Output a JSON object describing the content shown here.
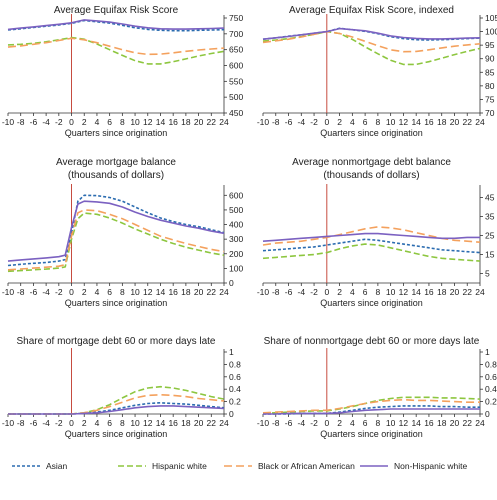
{
  "colors": {
    "asian": "#2b6cb0",
    "hispanic_white": "#8dc63f",
    "black": "#f4a15d",
    "non_hispanic_white": "#7b61c1",
    "origination_line": "#c0392b",
    "axis": "#333333"
  },
  "legend": {
    "items": [
      {
        "key": "asian",
        "label": "Asian",
        "dash": "3,2"
      },
      {
        "key": "hispanic_white",
        "label": "Hispanic white",
        "dash": "6,3"
      },
      {
        "key": "black",
        "label": "Black or African American",
        "dash": "8,4"
      },
      {
        "key": "non_hispanic_white",
        "label": "Non-Hispanic white",
        "dash": ""
      }
    ]
  },
  "chart_data": [
    {
      "type": "line",
      "title": "Average Equifax Risk Score",
      "xlabel": "Quarters since origination",
      "xlim": [
        -10,
        24
      ],
      "ylim": [
        450,
        750
      ],
      "xticks": [
        -10,
        -8,
        -6,
        -4,
        -2,
        0,
        2,
        4,
        6,
        8,
        10,
        12,
        14,
        16,
        18,
        20,
        22,
        24
      ],
      "yticks": [
        450,
        500,
        550,
        600,
        650,
        700,
        750
      ],
      "x": [
        -10,
        -8,
        -6,
        -4,
        -2,
        0,
        2,
        4,
        6,
        8,
        10,
        12,
        14,
        16,
        18,
        20,
        22,
        24
      ],
      "series": [
        {
          "key": "asian",
          "values": [
            712,
            716,
            720,
            724,
            728,
            733,
            742,
            738,
            734,
            727,
            719,
            714,
            711,
            710,
            710,
            711,
            712,
            713
          ]
        },
        {
          "key": "hispanic_white",
          "values": [
            665,
            667,
            670,
            675,
            681,
            688,
            683,
            668,
            650,
            632,
            615,
            605,
            605,
            612,
            621,
            630,
            638,
            645
          ]
        },
        {
          "key": "black",
          "values": [
            658,
            662,
            667,
            672,
            679,
            686,
            681,
            672,
            661,
            650,
            640,
            635,
            636,
            640,
            645,
            649,
            652,
            655
          ]
        },
        {
          "key": "non_hispanic_white",
          "values": [
            714,
            718,
            722,
            726,
            730,
            735,
            744,
            741,
            737,
            731,
            724,
            719,
            716,
            715,
            715,
            716,
            717,
            718
          ]
        }
      ]
    },
    {
      "type": "line",
      "title": "Average Equifax Risk Score, indexed",
      "xlabel": "Quarters since origination",
      "xlim": [
        -10,
        24
      ],
      "ylim": [
        70,
        105
      ],
      "xticks": [
        -10,
        -8,
        -6,
        -4,
        -2,
        0,
        2,
        4,
        6,
        8,
        10,
        12,
        14,
        16,
        18,
        20,
        22,
        24
      ],
      "yticks": [
        70,
        75,
        80,
        85,
        90,
        95,
        100,
        105
      ],
      "x": [
        -10,
        -8,
        -6,
        -4,
        -2,
        0,
        2,
        4,
        6,
        8,
        10,
        12,
        14,
        16,
        18,
        20,
        22,
        24
      ],
      "series": [
        {
          "key": "asian",
          "values": [
            97.2,
            97.7,
            98.3,
            98.8,
            99.4,
            100,
            101.2,
            100.7,
            100.1,
            99.2,
            98.1,
            97.4,
            97.0,
            96.9,
            97.0,
            97.2,
            97.4,
            97.6
          ]
        },
        {
          "key": "hispanic_white",
          "values": [
            96.5,
            96.9,
            97.4,
            98.1,
            99.0,
            100,
            99.3,
            97.1,
            94.4,
            91.8,
            89.4,
            87.9,
            87.9,
            88.9,
            90.2,
            91.5,
            92.7,
            93.8
          ]
        },
        {
          "key": "black",
          "values": [
            96.0,
            96.6,
            97.2,
            98.0,
            99.0,
            100,
            99.3,
            98.0,
            96.4,
            94.8,
            93.3,
            92.6,
            92.7,
            93.3,
            94.0,
            94.6,
            95.1,
            95.5
          ]
        },
        {
          "key": "non_hispanic_white",
          "values": [
            97.2,
            97.7,
            98.2,
            98.8,
            99.4,
            100,
            101.1,
            100.7,
            100.3,
            99.4,
            98.4,
            97.8,
            97.5,
            97.3,
            97.3,
            97.4,
            97.6,
            97.7
          ]
        }
      ]
    },
    {
      "type": "line",
      "title": "Average mortgage balance",
      "subtitle": "(thousands of dollars)",
      "xlabel": "Quarters since origination",
      "xlim": [
        -10,
        24
      ],
      "ylim": [
        0,
        650
      ],
      "xticks": [
        -10,
        -8,
        -6,
        -4,
        -2,
        0,
        2,
        4,
        6,
        8,
        10,
        12,
        14,
        16,
        18,
        20,
        22,
        24
      ],
      "yticks": [
        0,
        100,
        200,
        300,
        400,
        500,
        600
      ],
      "x": [
        -10,
        -8,
        -6,
        -4,
        -2,
        -1,
        0,
        1,
        2,
        4,
        6,
        8,
        10,
        12,
        14,
        16,
        18,
        20,
        22,
        24
      ],
      "series": [
        {
          "key": "asian",
          "values": [
            120,
            128,
            135,
            140,
            150,
            160,
            340,
            560,
            600,
            598,
            585,
            560,
            520,
            480,
            445,
            420,
            400,
            385,
            365,
            345
          ]
        },
        {
          "key": "hispanic_white",
          "values": [
            80,
            85,
            90,
            95,
            102,
            110,
            300,
            440,
            478,
            470,
            445,
            410,
            370,
            335,
            300,
            270,
            245,
            225,
            205,
            190
          ]
        },
        {
          "key": "black",
          "values": [
            90,
            96,
            102,
            108,
            115,
            125,
            320,
            480,
            500,
            495,
            470,
            440,
            400,
            360,
            320,
            295,
            270,
            250,
            230,
            215
          ]
        },
        {
          "key": "non_hispanic_white",
          "values": [
            150,
            158,
            165,
            172,
            180,
            190,
            380,
            540,
            560,
            555,
            545,
            520,
            485,
            455,
            430,
            410,
            390,
            375,
            355,
            340
          ]
        }
      ]
    },
    {
      "type": "line",
      "title": "Average nonmortgage debt balance",
      "subtitle": "(thousands of dollars)",
      "xlabel": "Quarters since origination",
      "xlim": [
        -10,
        24
      ],
      "ylim": [
        0,
        50
      ],
      "xticks": [
        -10,
        -8,
        -6,
        -4,
        -2,
        0,
        2,
        4,
        6,
        8,
        10,
        12,
        14,
        16,
        18,
        20,
        22,
        24
      ],
      "yticks": [
        5,
        15,
        25,
        35,
        45
      ],
      "x": [
        -10,
        -8,
        -6,
        -4,
        -2,
        0,
        2,
        4,
        6,
        8,
        10,
        12,
        14,
        16,
        18,
        20,
        22,
        24
      ],
      "series": [
        {
          "key": "asian",
          "values": [
            17,
            17.5,
            18,
            18.5,
            19,
            20,
            21,
            22,
            23,
            22.5,
            21.5,
            20.5,
            19.5,
            18.5,
            17.5,
            17,
            16.5,
            16
          ]
        },
        {
          "key": "hispanic_white",
          "values": [
            13,
            13.5,
            14,
            14.5,
            15,
            16,
            18,
            19.5,
            20.5,
            20,
            18.5,
            17,
            15.5,
            14,
            13,
            12.5,
            12,
            11.5
          ]
        },
        {
          "key": "black",
          "values": [
            20,
            21,
            21.5,
            22,
            23,
            24,
            25.5,
            27,
            28.5,
            29.5,
            29,
            28,
            26.5,
            25,
            23.5,
            22.5,
            22,
            21.5
          ]
        },
        {
          "key": "non_hispanic_white",
          "values": [
            22,
            22.5,
            23,
            23.5,
            24,
            24.5,
            25,
            25.5,
            26,
            26,
            25.5,
            25,
            24.5,
            24,
            23.5,
            23.5,
            24,
            24
          ]
        }
      ]
    },
    {
      "type": "line",
      "title": "Share of mortgage debt 60 or more days late",
      "xlabel": "Quarters since origination",
      "xlim": [
        -10,
        24
      ],
      "ylim": [
        0,
        1
      ],
      "xticks": [
        -10,
        -8,
        -6,
        -4,
        -2,
        0,
        2,
        4,
        6,
        8,
        10,
        12,
        14,
        16,
        18,
        20,
        22,
        24
      ],
      "yticks": [
        0,
        0.2,
        0.4,
        0.6,
        0.8,
        1
      ],
      "x": [
        -10,
        -8,
        -6,
        -4,
        -2,
        0,
        2,
        4,
        6,
        8,
        10,
        12,
        14,
        16,
        18,
        20,
        22,
        24
      ],
      "series": [
        {
          "key": "asian",
          "values": [
            0,
            0,
            0,
            0,
            0,
            0,
            0.01,
            0.03,
            0.06,
            0.1,
            0.14,
            0.17,
            0.18,
            0.17,
            0.16,
            0.14,
            0.12,
            0.1
          ]
        },
        {
          "key": "hispanic_white",
          "values": [
            0,
            0,
            0,
            0,
            0,
            0,
            0.02,
            0.07,
            0.15,
            0.26,
            0.36,
            0.42,
            0.44,
            0.42,
            0.38,
            0.33,
            0.28,
            0.24
          ]
        },
        {
          "key": "black",
          "values": [
            0,
            0,
            0,
            0,
            0,
            0,
            0.02,
            0.06,
            0.12,
            0.19,
            0.26,
            0.3,
            0.31,
            0.3,
            0.28,
            0.25,
            0.23,
            0.21
          ]
        },
        {
          "key": "non_hispanic_white",
          "values": [
            0,
            0,
            0,
            0,
            0,
            0,
            0.01,
            0.02,
            0.04,
            0.07,
            0.1,
            0.12,
            0.13,
            0.13,
            0.12,
            0.11,
            0.1,
            0.09
          ]
        }
      ]
    },
    {
      "type": "line",
      "title": "Share of nonmortgage debt 60 or more days late",
      "xlabel": "Quarters since origination",
      "xlim": [
        -10,
        24
      ],
      "ylim": [
        0,
        1
      ],
      "xticks": [
        -10,
        -8,
        -6,
        -4,
        -2,
        0,
        2,
        4,
        6,
        8,
        10,
        12,
        14,
        16,
        18,
        20,
        22,
        24
      ],
      "yticks": [
        0,
        0.2,
        0.4,
        0.6,
        0.8,
        1
      ],
      "x": [
        -10,
        -8,
        -6,
        -4,
        -2,
        0,
        2,
        4,
        6,
        8,
        10,
        12,
        14,
        16,
        18,
        20,
        22,
        24
      ],
      "series": [
        {
          "key": "asian",
          "values": [
            0,
            0,
            0,
            0.01,
            0.01,
            0.01,
            0.03,
            0.06,
            0.09,
            0.11,
            0.12,
            0.13,
            0.13,
            0.13,
            0.12,
            0.12,
            0.11,
            0.11
          ]
        },
        {
          "key": "hispanic_white",
          "values": [
            0.01,
            0.02,
            0.03,
            0.04,
            0.05,
            0.05,
            0.08,
            0.12,
            0.17,
            0.22,
            0.25,
            0.27,
            0.27,
            0.27,
            0.26,
            0.26,
            0.25,
            0.24
          ]
        },
        {
          "key": "black",
          "values": [
            0.02,
            0.03,
            0.04,
            0.05,
            0.06,
            0.06,
            0.09,
            0.13,
            0.17,
            0.2,
            0.22,
            0.23,
            0.22,
            0.22,
            0.21,
            0.2,
            0.19,
            0.19
          ]
        },
        {
          "key": "non_hispanic_white",
          "values": [
            0,
            0,
            0.01,
            0.01,
            0.01,
            0.01,
            0.02,
            0.04,
            0.06,
            0.07,
            0.08,
            0.08,
            0.08,
            0.08,
            0.08,
            0.08,
            0.08,
            0.08
          ]
        }
      ]
    }
  ]
}
